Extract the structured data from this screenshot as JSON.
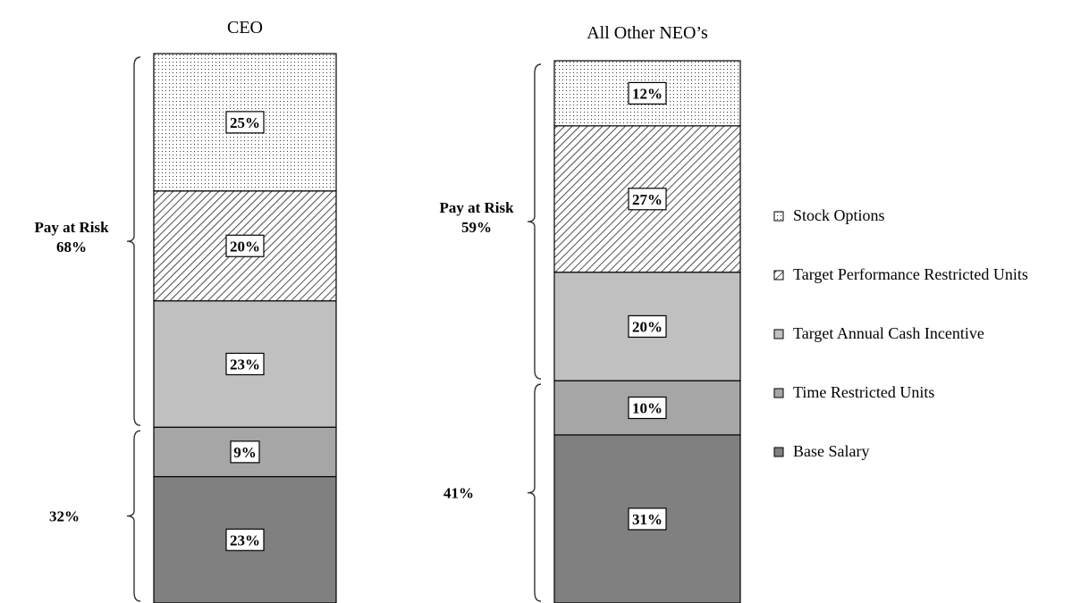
{
  "chart_data": {
    "type": "bar",
    "stacked": true,
    "categories": [
      "CEO",
      "All Other NEO’s"
    ],
    "series": [
      {
        "name": "Base Salary",
        "values": [
          23,
          31
        ],
        "color": "#808080",
        "pattern": "solid"
      },
      {
        "name": "Time Restricted Units",
        "values": [
          9,
          10
        ],
        "color": "#a6a6a6",
        "pattern": "solid"
      },
      {
        "name": "Target Annual Cash Incentive",
        "values": [
          23,
          20
        ],
        "color": "#c0c0c0",
        "pattern": "solid"
      },
      {
        "name": "Target Performance Restricted Units",
        "values": [
          20,
          27
        ],
        "color": "#ffffff",
        "pattern": "diagonal-hatch"
      },
      {
        "name": "Stock Options",
        "values": [
          25,
          12
        ],
        "color": "#ffffff",
        "pattern": "dots"
      }
    ],
    "value_labels": [
      [
        "23%",
        "9%",
        "23%",
        "20%",
        "25%"
      ],
      [
        "31%",
        "10%",
        "20%",
        "27%",
        "12%"
      ]
    ],
    "groups": [
      {
        "risk_label_line1": "Pay at Risk",
        "risk_label_line2": "68%",
        "fixed_label": "32%"
      },
      {
        "risk_label_line1": "Pay at Risk",
        "risk_label_line2": "59%",
        "fixed_label": "41%"
      }
    ],
    "legend_order": [
      "Stock Options",
      "Target Performance Restricted Units",
      "Target Annual Cash Incentive",
      "Time Restricted Units",
      "Base Salary"
    ],
    "legend_position": "right"
  }
}
